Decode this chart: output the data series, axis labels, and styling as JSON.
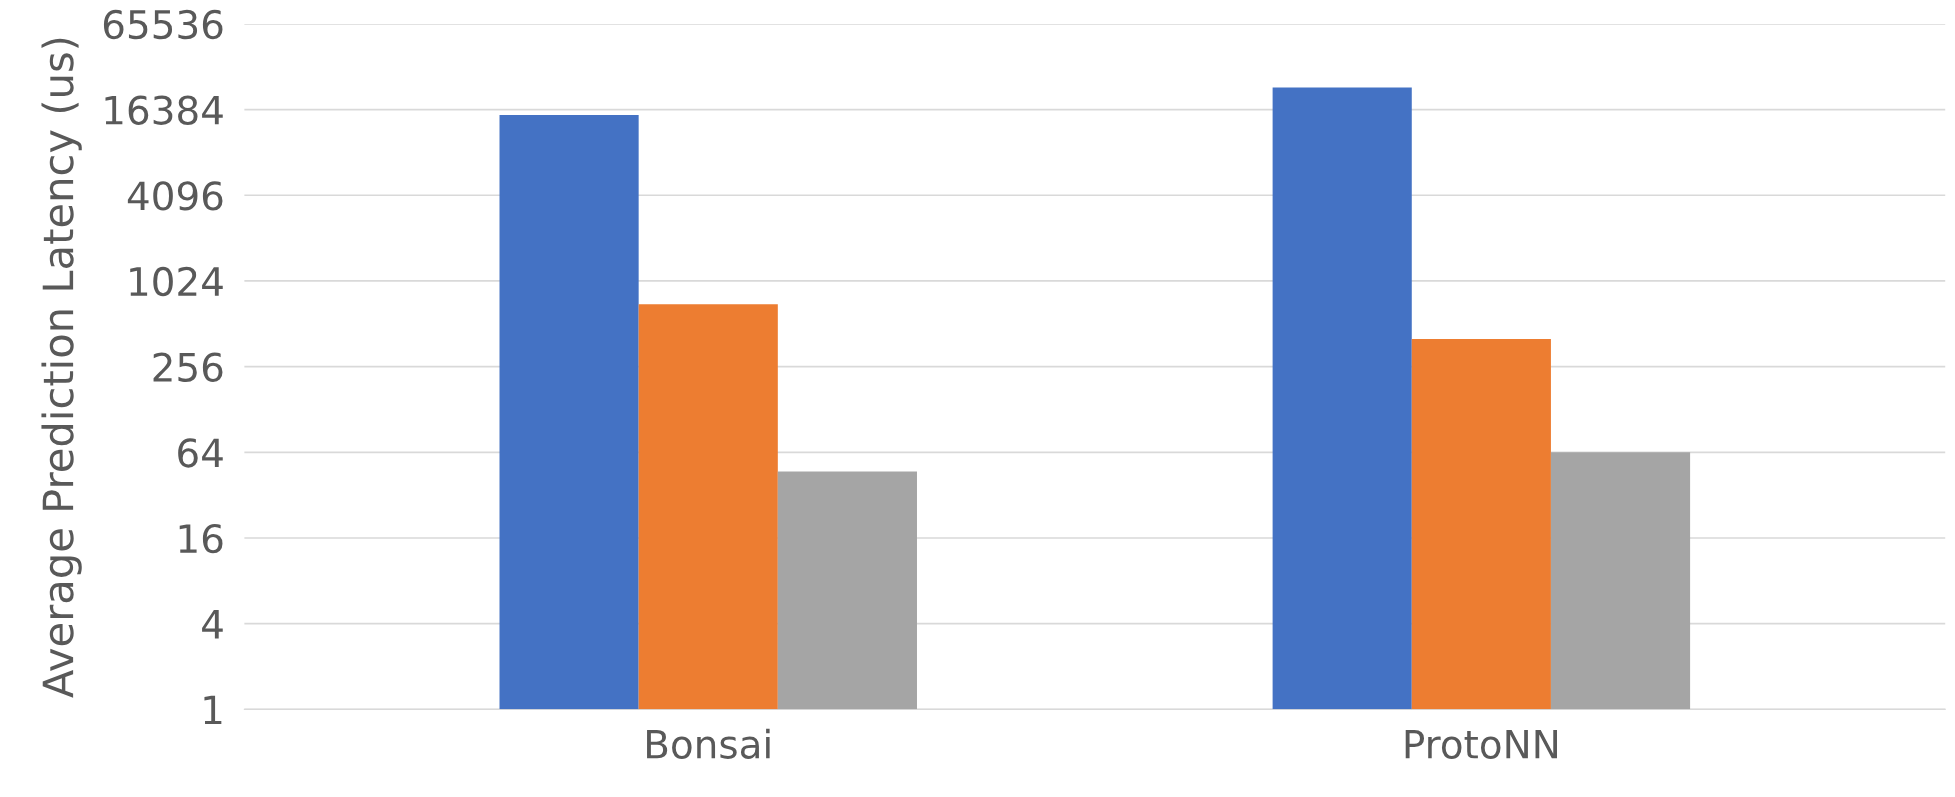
{
  "chart_data": {
    "type": "bar",
    "ylabel": "Average Prediction Latency (us)",
    "categories": [
      "Bonsai",
      "ProtoNN"
    ],
    "series": [
      {
        "color": "#4472c4",
        "values": [
          15000,
          23400
        ]
      },
      {
        "color": "#ed7d31",
        "values": [
          700,
          400
        ]
      },
      {
        "color": "#a5a5a5",
        "values": [
          46,
          63
        ]
      }
    ],
    "log": "y",
    "ylim": [
      1,
      65536
    ],
    "yticks": [
      1,
      4,
      16,
      64,
      256,
      1024,
      4096,
      16384,
      65536
    ],
    "grid": "y",
    "legend": false
  }
}
